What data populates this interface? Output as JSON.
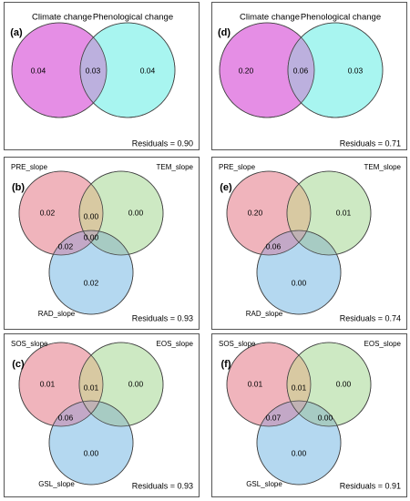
{
  "colors": {
    "pink": "#e58ee5",
    "cyan": "#a8f5f0",
    "overlap_two": "#bcb0de",
    "red_soft": "#f0b4bc",
    "green_soft": "#cde9c3",
    "blue_soft": "#b4d8f0",
    "rg_overlap": "#d8c9a2",
    "rb_overlap": "#c3a8c7",
    "gb_overlap": "#a7cbc3",
    "center": "#c0b2b4"
  },
  "panels": [
    {
      "letter": "(a)",
      "type": "two",
      "labels": [
        "Climate change",
        "Phenological change"
      ],
      "values": {
        "left": "0.04",
        "overlap": "0.03",
        "right": "0.04"
      },
      "residuals": "Residuals = 0.90"
    },
    {
      "letter": "(b)",
      "type": "three",
      "labels": [
        "PRE_slope",
        "TEM_slope",
        "RAD_slope"
      ],
      "values": {
        "a": "0.02",
        "b": "0.00",
        "c": "0.02",
        "ab": "0.00",
        "ac": "0.02",
        "bc": "",
        "abc": "0.00"
      },
      "residuals": "Residuals = 0.93"
    },
    {
      "letter": "(c)",
      "type": "three",
      "labels": [
        "SOS_slope",
        "EOS_slope",
        "GSL_slope"
      ],
      "values": {
        "a": "0.01",
        "b": "0.00",
        "c": "0.00",
        "ab": "0.01",
        "ac": "0.06",
        "bc": "",
        "abc": ""
      },
      "residuals": "Residuals = 0.93"
    },
    {
      "letter": "(d)",
      "type": "two",
      "labels": [
        "Climate change",
        "Phenological change"
      ],
      "values": {
        "left": "0.20",
        "overlap": "0.06",
        "right": "0.03"
      },
      "residuals": "Residuals = 0.71"
    },
    {
      "letter": "(e)",
      "type": "three",
      "labels": [
        "PRE_slope",
        "TEM_slope",
        "RAD_slope"
      ],
      "values": {
        "a": "0.20",
        "b": "0.01",
        "c": "0.00",
        "ab": "",
        "ac": "0.06",
        "bc": "",
        "abc": ""
      },
      "residuals": "Residuals = 0.74"
    },
    {
      "letter": "(f)",
      "type": "three",
      "labels": [
        "SOS_slope",
        "EOS_slope",
        "GSL_slope"
      ],
      "values": {
        "a": "0.01",
        "b": "0.00",
        "c": "0.00",
        "ab": "0.01",
        "ac": "0.07",
        "bc": "0.00",
        "abc": ""
      },
      "residuals": "Residuals = 0.91"
    }
  ]
}
